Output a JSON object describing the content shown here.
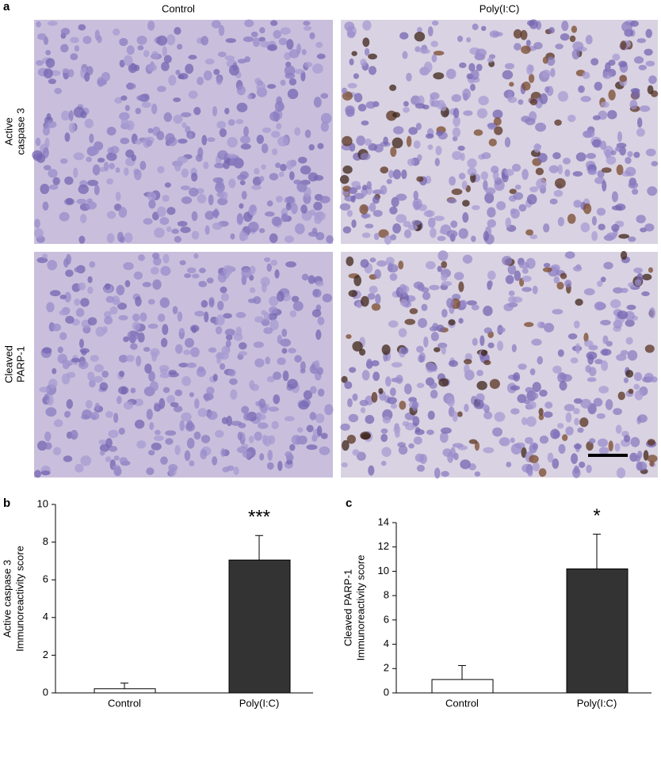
{
  "panel_a": {
    "label": "a",
    "columns": [
      "Control",
      "Poly(I:C)"
    ],
    "rows": [
      [
        "Active",
        "caspase 3"
      ],
      [
        "Cleaved",
        "PARP-1"
      ]
    ]
  },
  "chart_data": [
    {
      "type": "bar",
      "panel_label": "b",
      "ylabel": [
        "Active caspase 3",
        "Immunoreactivity score"
      ],
      "categories": [
        "Control",
        "Poly(I:C)"
      ],
      "values": [
        0.22,
        7.05
      ],
      "errors": [
        0.3,
        1.3
      ],
      "colors": [
        "#ffffff",
        "#333333"
      ],
      "annotations": [
        null,
        "***"
      ],
      "ylim": [
        0,
        10
      ],
      "yticks": [
        0,
        2,
        4,
        6,
        8,
        10
      ]
    },
    {
      "type": "bar",
      "panel_label": "c",
      "ylabel": [
        "Cleaved PARP-1",
        "Immunoreactivity score"
      ],
      "categories": [
        "Control",
        "Poly(I:C)"
      ],
      "values": [
        1.1,
        10.2
      ],
      "errors": [
        1.15,
        2.85
      ],
      "colors": [
        "#ffffff",
        "#333333"
      ],
      "annotations": [
        null,
        "*"
      ],
      "ylim": [
        0,
        14
      ],
      "yticks": [
        0,
        2,
        4,
        6,
        8,
        10,
        12,
        14
      ]
    }
  ]
}
